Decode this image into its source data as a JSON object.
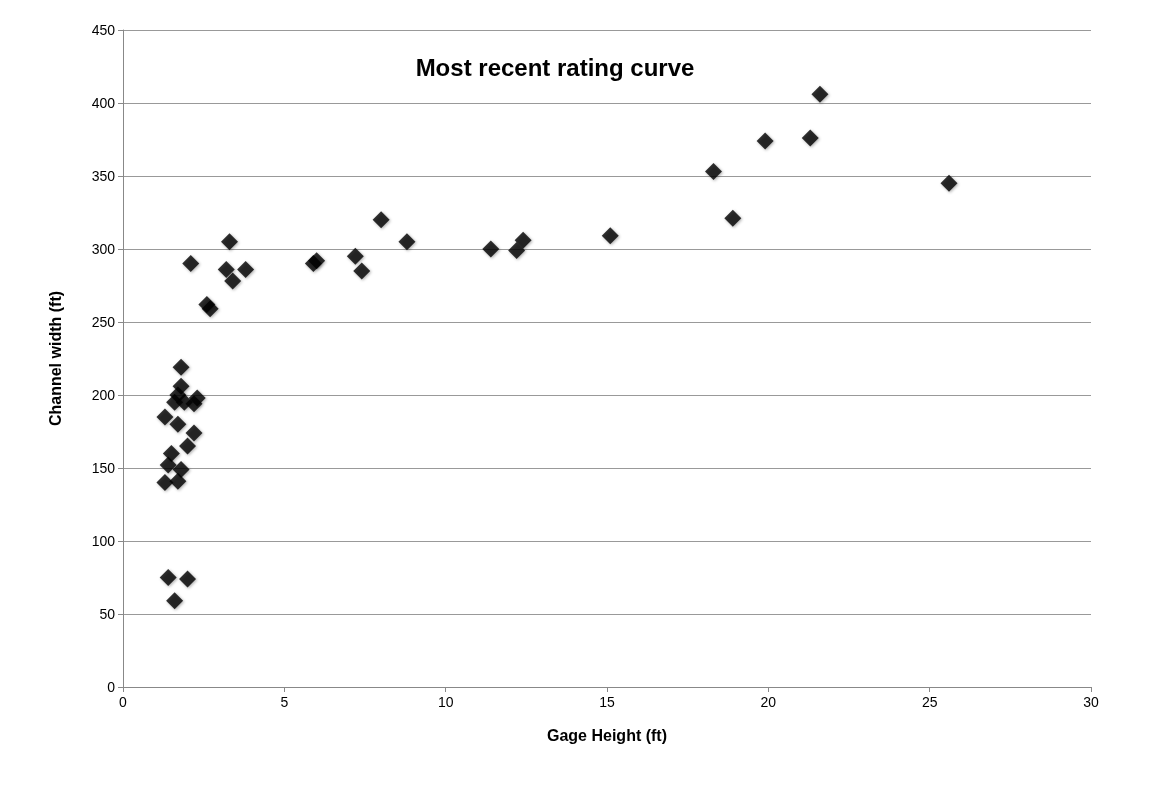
{
  "chart_data": {
    "type": "scatter",
    "title": "Most recent rating curve",
    "xlabel": "Gage Height (ft)",
    "ylabel": "Channel width (ft)",
    "x": [
      1.3,
      1.4,
      1.3,
      1.5,
      1.4,
      1.6,
      2.0,
      1.7,
      1.8,
      1.7,
      2.0,
      2.2,
      1.6,
      1.7,
      1.8,
      1.8,
      1.9,
      2.2,
      2.3,
      2.1,
      2.6,
      2.7,
      3.2,
      3.3,
      3.4,
      3.8,
      5.9,
      6.0,
      7.2,
      7.4,
      8.0,
      8.8,
      11.4,
      12.2,
      12.4,
      15.1,
      18.3,
      18.9,
      19.9,
      21.3,
      21.6,
      25.6
    ],
    "values": [
      140,
      152,
      185,
      160,
      75,
      59,
      74,
      141,
      149,
      180,
      165,
      174,
      195,
      200,
      206,
      219,
      195,
      194,
      198,
      290,
      262,
      259,
      286,
      305,
      278,
      286,
      290,
      292,
      295,
      285,
      320,
      305,
      300,
      299,
      306,
      309,
      353,
      321,
      374,
      376,
      406,
      345
    ],
    "color": "#000000",
    "marker": "diamond",
    "xlim": [
      0,
      30
    ],
    "xticks": [
      0,
      5,
      10,
      15,
      20,
      25,
      30
    ],
    "ylim": [
      0,
      450
    ],
    "yticks": [
      0,
      50,
      100,
      150,
      200,
      250,
      300,
      350,
      400,
      450
    ],
    "grid": "y"
  }
}
